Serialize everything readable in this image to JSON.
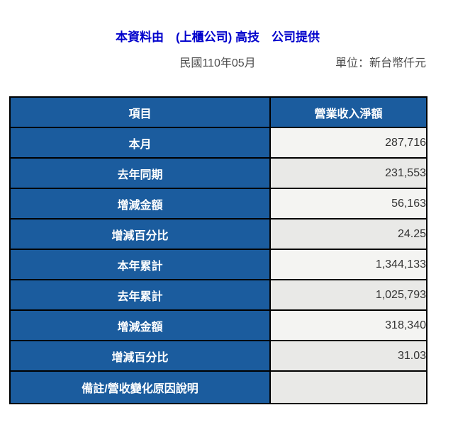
{
  "header": {
    "title": "本資料由　(上櫃公司) 高技　公司提供",
    "period": "民國110年05月",
    "unit": "單位：新台幣仟元"
  },
  "table": {
    "columns": [
      {
        "label": "項目"
      },
      {
        "label": "營業收入淨額"
      }
    ],
    "rows": [
      {
        "label": "本月",
        "value": "287,716"
      },
      {
        "label": "去年同期",
        "value": "231,553"
      },
      {
        "label": "增減金額",
        "value": "56,163"
      },
      {
        "label": "增減百分比",
        "value": "24.25"
      },
      {
        "label": "本年累計",
        "value": "1,344,133"
      },
      {
        "label": "去年累計",
        "value": "1,025,793"
      },
      {
        "label": "增減金額",
        "value": "318,340"
      },
      {
        "label": "增減百分比",
        "value": "31.03"
      },
      {
        "label": "備註/營收變化原因說明",
        "value": ""
      }
    ]
  },
  "colors": {
    "title_blue": "#0000CC",
    "header_blue": "#1B5C9E",
    "row_light": "#F4F4F2",
    "row_dark": "#E9E9E7",
    "border_black": "#000000",
    "subtitle_gray": "#4D4D4D",
    "value_text": "#333333"
  }
}
